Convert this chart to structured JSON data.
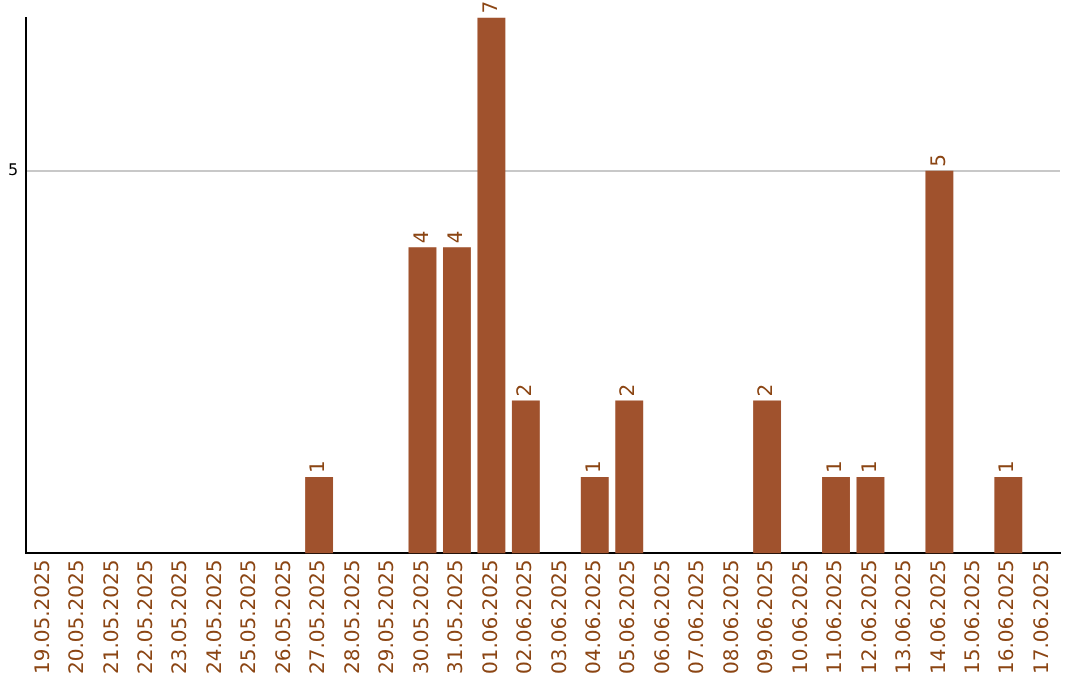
{
  "chart_data": {
    "type": "bar",
    "categories": [
      "19.05.2025",
      "20.05.2025",
      "21.05.2025",
      "22.05.2025",
      "23.05.2025",
      "24.05.2025",
      "25.05.2025",
      "26.05.2025",
      "27.05.2025",
      "28.05.2025",
      "29.05.2025",
      "30.05.2025",
      "31.05.2025",
      "01.06.2025",
      "02.06.2025",
      "03.06.2025",
      "04.06.2025",
      "05.06.2025",
      "06.06.2025",
      "07.06.2025",
      "08.06.2025",
      "09.06.2025",
      "10.06.2025",
      "11.06.2025",
      "12.06.2025",
      "13.06.2025",
      "14.06.2025",
      "15.06.2025",
      "16.06.2025",
      "17.06.2025"
    ],
    "values": [
      0,
      0,
      0,
      0,
      0,
      0,
      0,
      0,
      1,
      0,
      0,
      4,
      4,
      7,
      2,
      0,
      1,
      2,
      0,
      0,
      0,
      2,
      0,
      1,
      1,
      0,
      5,
      0,
      1,
      0
    ],
    "value_labels": [
      null,
      null,
      null,
      null,
      null,
      null,
      null,
      null,
      "1",
      null,
      null,
      "4",
      "4",
      "7",
      "2",
      null,
      "1",
      "2",
      null,
      null,
      null,
      "2",
      null,
      "1",
      "1",
      null,
      "5",
      null,
      "1",
      null
    ],
    "color": "#a0522d",
    "ylim": [
      0,
      7
    ],
    "yticks": [
      5
    ],
    "grid": "y"
  }
}
